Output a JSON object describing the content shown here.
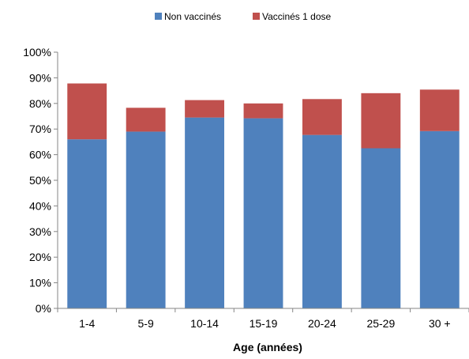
{
  "chart_data": {
    "type": "bar",
    "stacked": true,
    "categories": [
      "1-4",
      "5-9",
      "10-14",
      "15-19",
      "20-24",
      "25-29",
      "30 +"
    ],
    "series": [
      {
        "name": "Non vaccinés",
        "color": "#4F81BD",
        "values": [
          66.0,
          69.0,
          74.5,
          74.2,
          67.7,
          62.5,
          69.2
        ]
      },
      {
        "name": "Vaccinés 1 dose",
        "color": "#C0504D",
        "values": [
          21.8,
          9.3,
          6.8,
          5.8,
          14.0,
          21.5,
          16.2
        ]
      }
    ],
    "y_ticks": [
      "0%",
      "10%",
      "20%",
      "30%",
      "40%",
      "50%",
      "60%",
      "70%",
      "80%",
      "90%",
      "100%"
    ],
    "ylim": [
      0,
      100
    ],
    "xlabel": "Age (années)",
    "ylabel": "",
    "title": "",
    "grid": false,
    "legend_position": "top-center"
  }
}
